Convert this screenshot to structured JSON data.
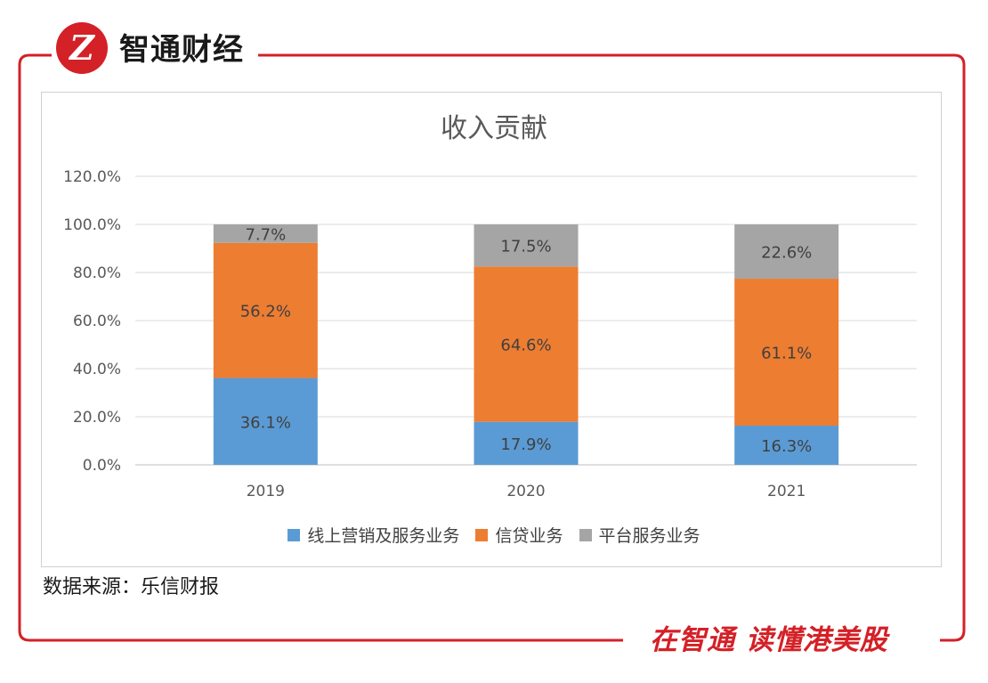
{
  "brand": {
    "logo_letter": "Z",
    "name": "智通财经"
  },
  "slogan": "在智通 读懂港美股",
  "source": "数据来源：乐信财报",
  "colors": {
    "frame": "#d42027",
    "series": [
      "#5b9bd5",
      "#ed7d31",
      "#a5a5a5"
    ]
  },
  "chart_data": {
    "type": "bar",
    "stacked": true,
    "title": "收入贡献",
    "categories": [
      "2019",
      "2020",
      "2021"
    ],
    "series": [
      {
        "name": "线上营销及服务业务",
        "values": [
          36.1,
          17.9,
          16.3
        ],
        "labels": [
          "36.1%",
          "17.9%",
          "16.3%"
        ]
      },
      {
        "name": "信贷业务",
        "values": [
          56.2,
          64.6,
          61.1
        ],
        "labels": [
          "56.2%",
          "64.6%",
          "61.1%"
        ]
      },
      {
        "name": "平台服务业务",
        "values": [
          7.7,
          17.5,
          22.6
        ],
        "labels": [
          "7.7%",
          "17.5%",
          "22.6%"
        ]
      }
    ],
    "ylim": [
      0,
      120
    ],
    "yticks": [
      0,
      20,
      40,
      60,
      80,
      100,
      120
    ],
    "ytick_labels": [
      "0.0%",
      "20.0%",
      "40.0%",
      "60.0%",
      "80.0%",
      "100.0%",
      "120.0%"
    ],
    "grid": true,
    "legend": "bottom"
  }
}
